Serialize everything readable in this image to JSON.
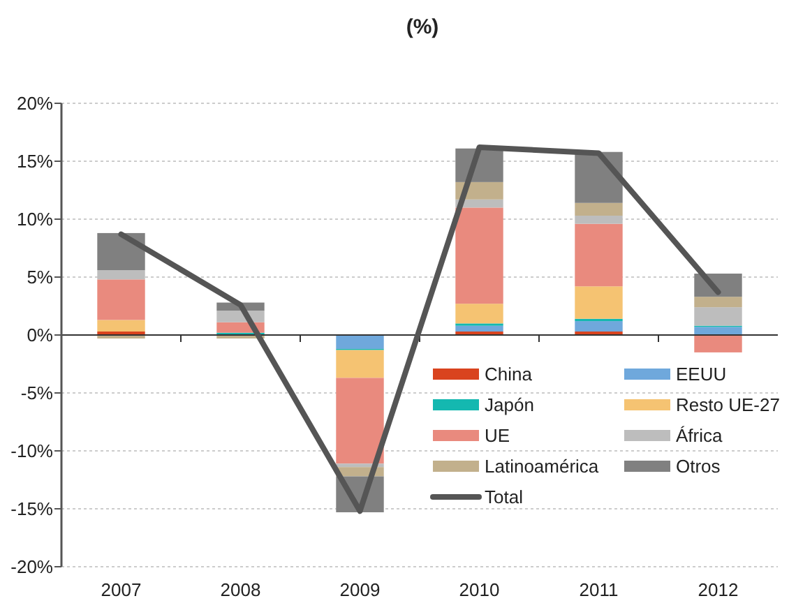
{
  "chart_data": {
    "type": "bar",
    "title": "(%)",
    "stacked": true,
    "categories": [
      "2007",
      "2008",
      "2009",
      "2010",
      "2011",
      "2012"
    ],
    "ylim": [
      -20,
      20
    ],
    "yticks": [
      {
        "value": -20,
        "label": "-20%"
      },
      {
        "value": -15,
        "label": "-15%"
      },
      {
        "value": -10,
        "label": "-10%"
      },
      {
        "value": -5,
        "label": "-5%"
      },
      {
        "value": 0,
        "label": "0%"
      },
      {
        "value": 5,
        "label": "5%"
      },
      {
        "value": 10,
        "label": "10%"
      },
      {
        "value": 15,
        "label": "15%"
      },
      {
        "value": 20,
        "label": "20%"
      }
    ],
    "grid": "y",
    "legend": "bottom right",
    "series": [
      {
        "name": "China",
        "color": "#d9431e",
        "values": [
          0.3,
          0,
          0,
          0.3,
          0.3,
          0
        ]
      },
      {
        "name": "EEUU",
        "color": "#6fa8dc",
        "values": [
          0,
          null,
          -1.2,
          0.5,
          0.9,
          0.7
        ]
      },
      {
        "name": "Japón",
        "color": "#14b8b0",
        "values": [
          0,
          0.2,
          -0.1,
          0.2,
          0.2,
          0.1
        ]
      },
      {
        "name": "Resto UE-27",
        "color": "#f5c372",
        "values": [
          1.0,
          0,
          -2.4,
          1.7,
          2.8,
          0
        ]
      },
      {
        "name": "UE",
        "color": "#e98a7e",
        "values": [
          3.5,
          0.9,
          -7.4,
          8.3,
          5.4,
          -1.5
        ]
      },
      {
        "name": "África",
        "color": "#bdbdbd",
        "values": [
          0.8,
          1.0,
          -0.3,
          0.7,
          0.7,
          1.6
        ]
      },
      {
        "name": "Latinoamérica",
        "color": "#c2b08c",
        "values": [
          -0.3,
          -0.3,
          -0.8,
          1.5,
          1.1,
          0.9
        ]
      },
      {
        "name": "Otros",
        "color": "#808080",
        "values": [
          3.2,
          0.7,
          -3.1,
          2.9,
          4.4,
          2.0
        ]
      },
      {
        "name": "Total",
        "type": "line",
        "color": "#555555",
        "values": [
          8.7,
          2.6,
          -15.2,
          16.2,
          15.7,
          3.7
        ]
      }
    ]
  }
}
